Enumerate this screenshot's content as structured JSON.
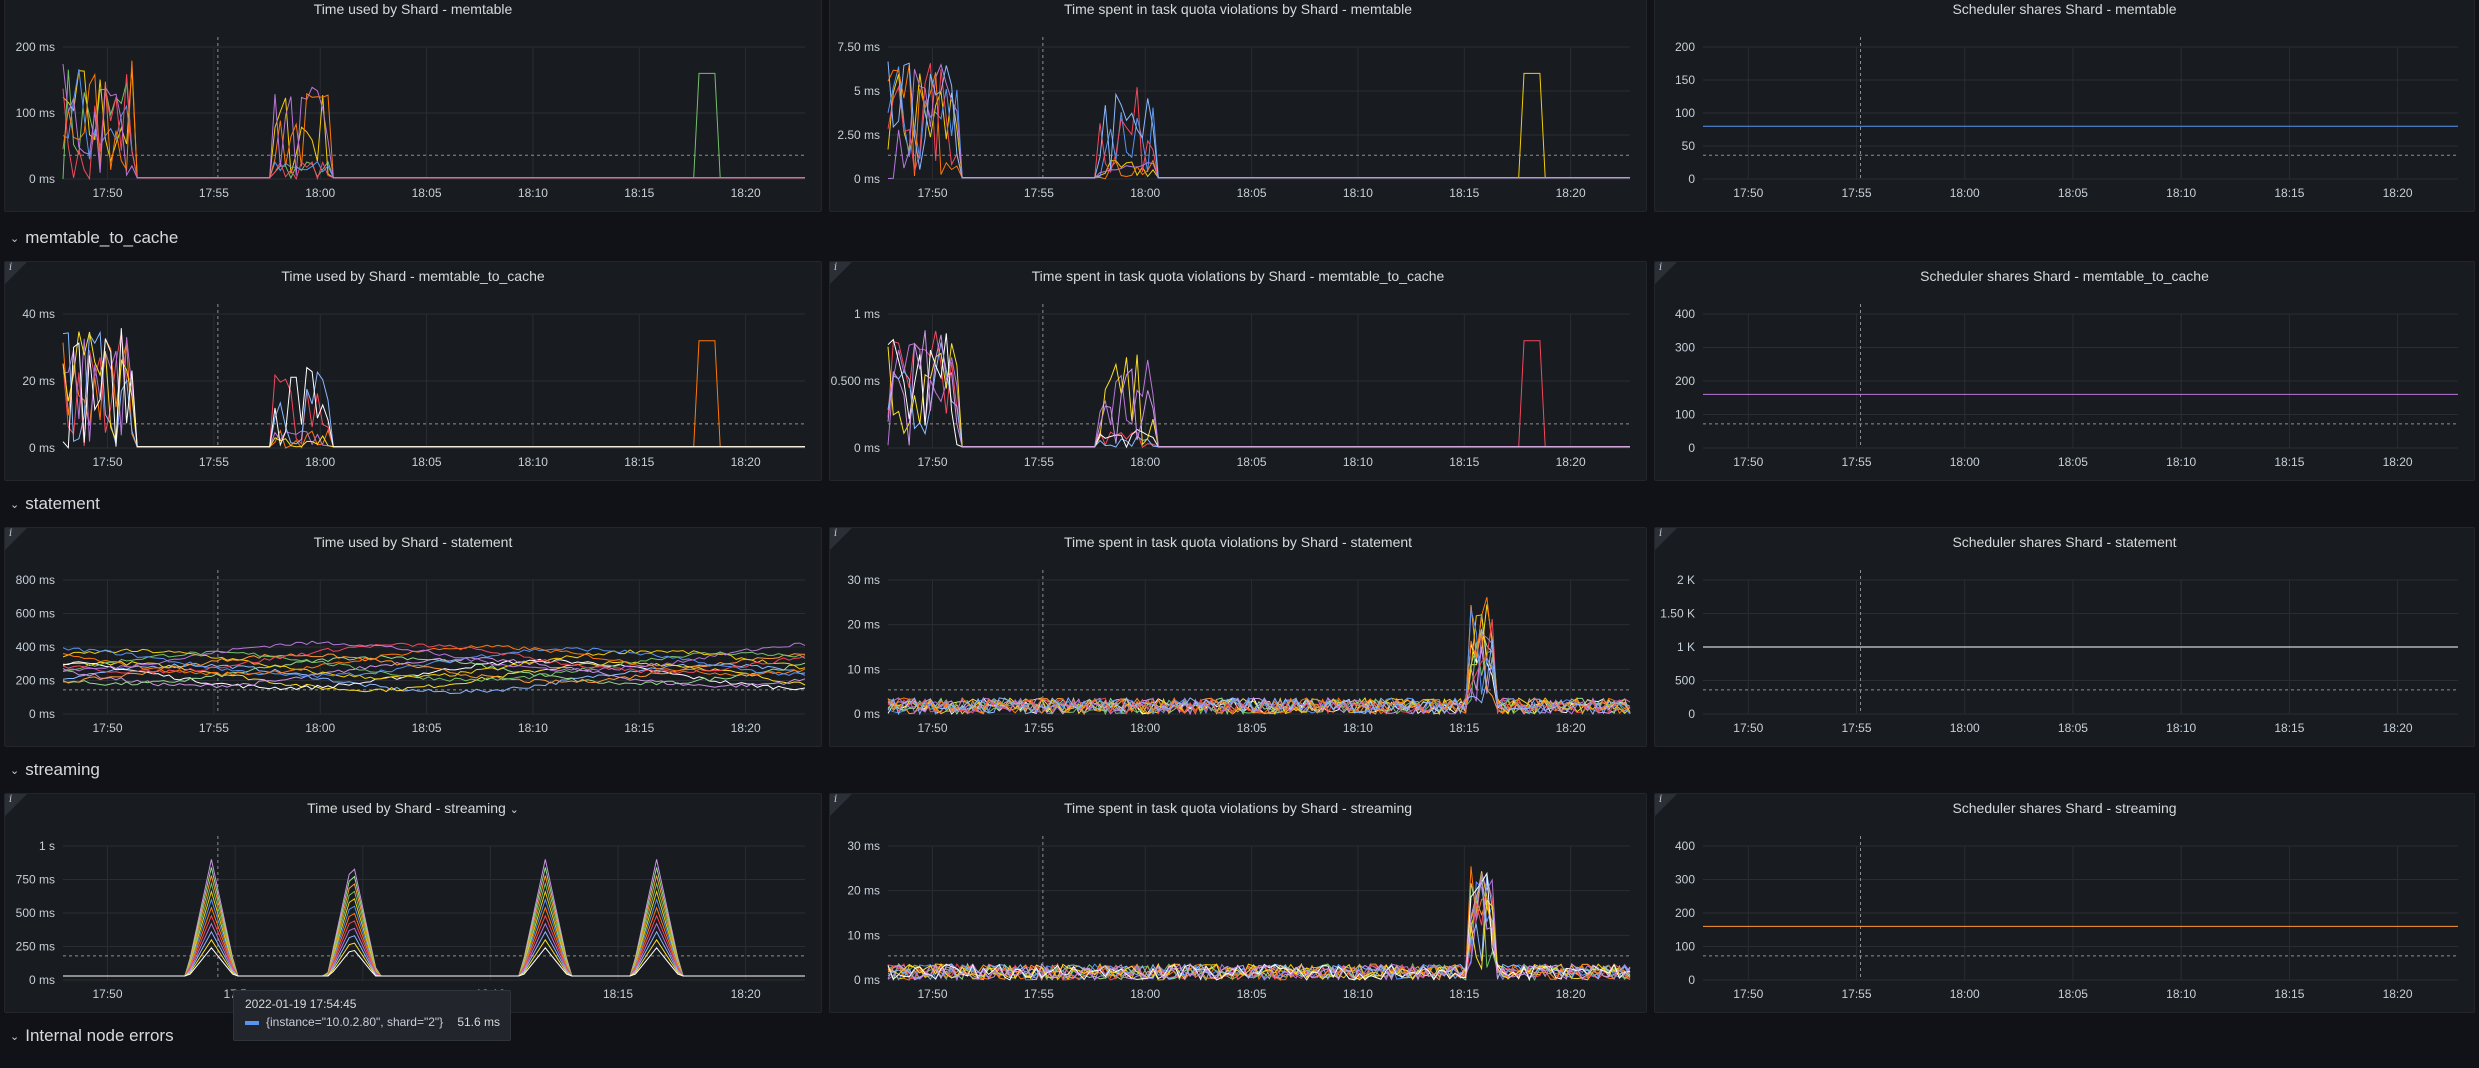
{
  "rows": [
    {
      "label": "memtable_to_cache"
    },
    {
      "label": "statement"
    },
    {
      "label": "streaming"
    },
    {
      "label": "Internal node errors"
    }
  ],
  "panels": [
    {
      "title": "Time used by Shard - memtable",
      "yticks": [
        "200 ms",
        "100 ms",
        "0 ms"
      ],
      "xticks": [
        "17:50",
        "17:55",
        "18:00",
        "18:05",
        "18:10",
        "18:15",
        "18:20"
      ],
      "info": "i"
    },
    {
      "title": "Time spent in task quota violations by Shard - memtable",
      "yticks": [
        "7.50 ms",
        "5 ms",
        "2.50 ms",
        "0 ms"
      ],
      "xticks": [
        "17:50",
        "17:55",
        "18:00",
        "18:05",
        "18:10",
        "18:15",
        "18:20"
      ],
      "info": "i"
    },
    {
      "title": "Scheduler shares Shard - memtable",
      "yticks": [
        "200",
        "150",
        "100",
        "50",
        "0"
      ],
      "xticks": [
        "17:50",
        "17:55",
        "18:00",
        "18:05",
        "18:10",
        "18:15",
        "18:20"
      ],
      "info": "i"
    },
    {
      "title": "Time used by Shard - memtable_to_cache",
      "yticks": [
        "40 ms",
        "20 ms",
        "0 ms"
      ],
      "xticks": [
        "17:50",
        "17:55",
        "18:00",
        "18:05",
        "18:10",
        "18:15",
        "18:20"
      ],
      "info": "i"
    },
    {
      "title": "Time spent in task quota violations by Shard - memtable_to_cache",
      "yticks": [
        "1 ms",
        "0.500 ms",
        "0 ms"
      ],
      "xticks": [
        "17:50",
        "17:55",
        "18:00",
        "18:05",
        "18:10",
        "18:15",
        "18:20"
      ],
      "info": "i"
    },
    {
      "title": "Scheduler shares Shard - memtable_to_cache",
      "yticks": [
        "400",
        "300",
        "200",
        "100",
        "0"
      ],
      "xticks": [
        "17:50",
        "17:55",
        "18:00",
        "18:05",
        "18:10",
        "18:15",
        "18:20"
      ],
      "info": "i"
    },
    {
      "title": "Time used by Shard - statement",
      "yticks": [
        "800 ms",
        "600 ms",
        "400 ms",
        "200 ms",
        "0 ms"
      ],
      "xticks": [
        "17:50",
        "17:55",
        "18:00",
        "18:05",
        "18:10",
        "18:15",
        "18:20"
      ],
      "info": "i"
    },
    {
      "title": "Time spent in task quota violations by Shard - statement",
      "yticks": [
        "30 ms",
        "20 ms",
        "10 ms",
        "0 ms"
      ],
      "xticks": [
        "17:50",
        "17:55",
        "18:00",
        "18:05",
        "18:10",
        "18:15",
        "18:20"
      ],
      "info": "i"
    },
    {
      "title": "Scheduler shares Shard - statement",
      "yticks": [
        "2 K",
        "1.50 K",
        "1 K",
        "500",
        "0"
      ],
      "xticks": [
        "17:50",
        "17:55",
        "18:00",
        "18:05",
        "18:10",
        "18:15",
        "18:20"
      ],
      "info": "i"
    },
    {
      "title": "Time used by Shard - streaming",
      "title_chevron": "⌄",
      "yticks": [
        "1 s",
        "750 ms",
        "500 ms",
        "250 ms",
        "0 ms"
      ],
      "xticks": [
        "17:50",
        "17:5",
        "",
        "18:10",
        "18:15",
        "18:20"
      ],
      "info": "i"
    },
    {
      "title": "Time spent in task quota violations by Shard - streaming",
      "yticks": [
        "30 ms",
        "20 ms",
        "10 ms",
        "0 ms"
      ],
      "xticks": [
        "17:50",
        "17:55",
        "18:00",
        "18:05",
        "18:10",
        "18:15",
        "18:20"
      ],
      "info": "i"
    },
    {
      "title": "Scheduler shares Shard - streaming",
      "yticks": [
        "400",
        "300",
        "200",
        "100",
        "0"
      ],
      "xticks": [
        "17:50",
        "17:55",
        "18:00",
        "18:05",
        "18:10",
        "18:15",
        "18:20"
      ],
      "info": "i"
    }
  ],
  "tooltip": {
    "time": "2022-01-19 17:54:45",
    "label": "{instance=\"10.0.2.80\", shard=\"2\"}",
    "value": "51.6 ms",
    "color": "#5794f2"
  },
  "colors": {
    "background": "#111217",
    "panel": "#181b1f",
    "grid": "#2a2d33",
    "series": [
      "#73bf69",
      "#f2cc0c",
      "#5794f2",
      "#ff780a",
      "#f2495c",
      "#b877d9",
      "#8ab8ff",
      "#fade2a",
      "#ffffff",
      "#ca95e5",
      "#96d98d",
      "#ff9830"
    ]
  }
}
